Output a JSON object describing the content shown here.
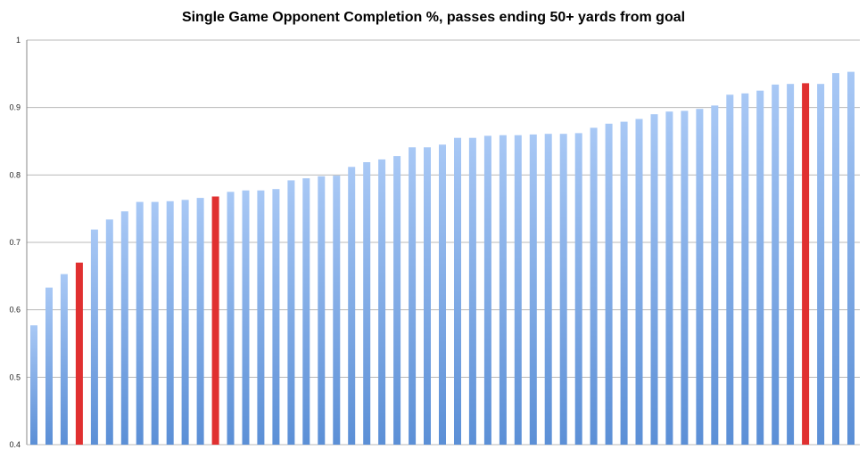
{
  "chart_data": {
    "type": "bar",
    "title": "Single Game Opponent Completion %, passes ending 50+ yards from goal",
    "xlabel": "",
    "ylabel": "",
    "ylim": [
      0.4,
      1.0
    ],
    "yticks": [
      "0.4",
      "0.5",
      "0.6",
      "0.7",
      "0.8",
      "0.9",
      "1"
    ],
    "grid": true,
    "legend": "none",
    "colors": {
      "default": "#5b8fd6",
      "default_light": "#a8c8f5",
      "highlight": "#e03030"
    },
    "highlighted_indices": [
      3,
      12,
      51
    ],
    "values": [
      0.577,
      0.633,
      0.653,
      0.67,
      0.719,
      0.734,
      0.746,
      0.76,
      0.76,
      0.761,
      0.763,
      0.766,
      0.768,
      0.775,
      0.777,
      0.777,
      0.779,
      0.792,
      0.795,
      0.798,
      0.799,
      0.812,
      0.819,
      0.823,
      0.828,
      0.841,
      0.841,
      0.845,
      0.855,
      0.855,
      0.858,
      0.859,
      0.859,
      0.86,
      0.861,
      0.861,
      0.862,
      0.87,
      0.876,
      0.879,
      0.883,
      0.89,
      0.894,
      0.895,
      0.898,
      0.903,
      0.919,
      0.921,
      0.925,
      0.934,
      0.935,
      0.936,
      0.935,
      0.951,
      0.953
    ]
  }
}
